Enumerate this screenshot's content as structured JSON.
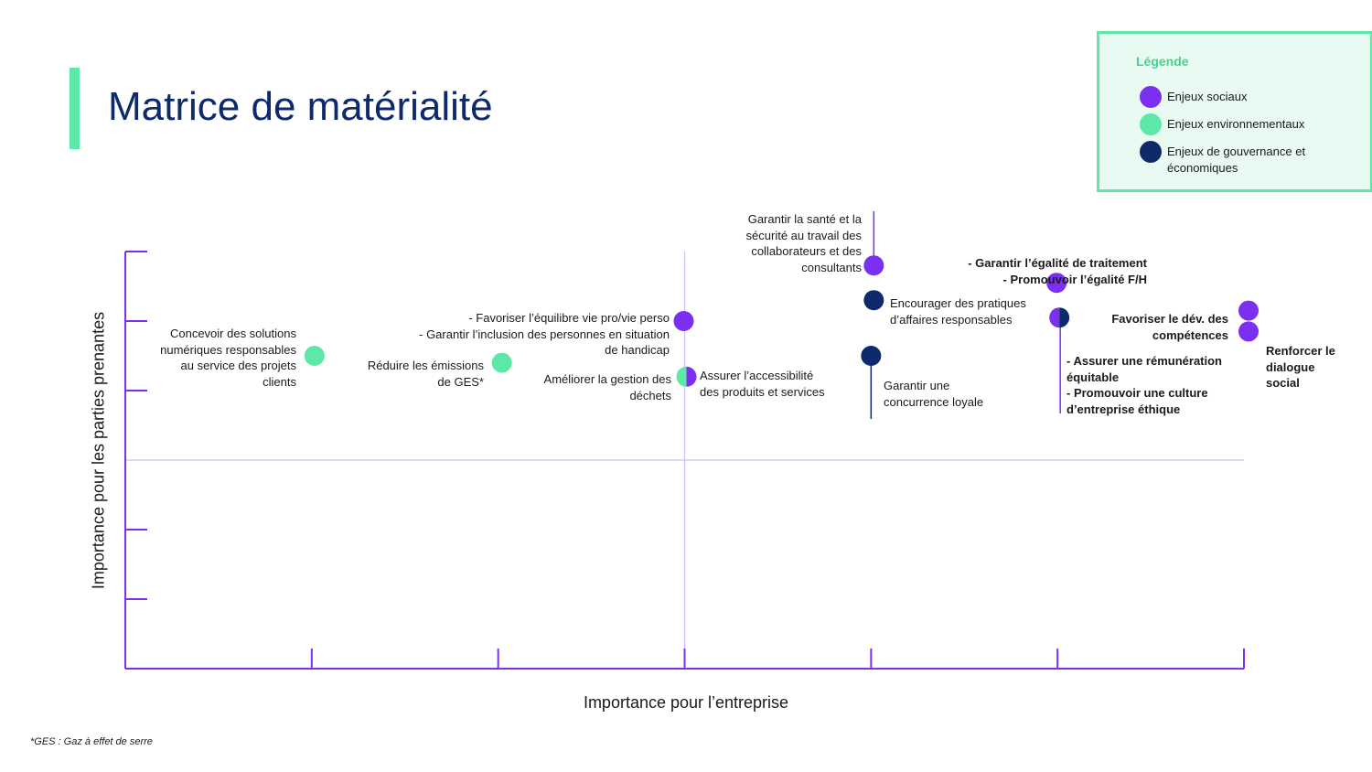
{
  "title": "Matrice de matérialité",
  "legend": {
    "title": "Légende",
    "items": [
      {
        "label": "Enjeux sociaux",
        "color": "#7b2ff0"
      },
      {
        "label": "Enjeux environnementaux",
        "color": "#5ee8a8"
      },
      {
        "label": "Enjeux de gouvernance et\néconomiques",
        "color": "#0f2a6b"
      }
    ]
  },
  "footnote": "*GES : Gaz à effet de serre",
  "colors": {
    "social": "#7b2ff0",
    "env": "#5ee8a8",
    "gov": "#0f2a6b",
    "axis": "#7b2ff0",
    "grid": "#cbbdf5"
  },
  "chart_data": {
    "type": "scatter",
    "xlabel": "Importance pour l’entreprise",
    "ylabel": "Importance pour les parties prenantes",
    "xlim": [
      0,
      6
    ],
    "ylim": [
      0,
      6
    ],
    "points": [
      {
        "x": 1,
        "y": 4.5,
        "category": "env",
        "label": "Concevoir des solutions\nnumériques responsables\nau service des projets\nclients"
      },
      {
        "x": 2,
        "y": 4.4,
        "category": "env",
        "label": "Réduire les émissions\nde GES*"
      },
      {
        "x": 3,
        "y": 5.0,
        "category": "social",
        "label": "- Favoriser l’équilibre vie pro/vie perso\n- Garantir l’inclusion des personnes en situation\nde handicap"
      },
      {
        "x": 3,
        "y": 4.2,
        "category": "env+social",
        "label": "Améliorer la gestion des\ndéchets",
        "label2": "Assurer l’accessibilité\ndes produits et services"
      },
      {
        "x": 4,
        "y": 5.8,
        "category": "social",
        "label": "Garantir la santé et la\nsécurité au travail des\ncollaborateurs et des\nconsultants"
      },
      {
        "x": 4,
        "y": 5.3,
        "category": "gov",
        "label": "Encourager des pratiques\nd’affaires responsables"
      },
      {
        "x": 4,
        "y": 4.5,
        "category": "gov",
        "label": "Garantir une\nconcurrence loyale"
      },
      {
        "x": 5,
        "y": 5.55,
        "category": "social",
        "label": "- Garantir l’égalité de traitement\n- Promouvoir l’égalité F/H"
      },
      {
        "x": 5,
        "y": 5.05,
        "category": "social+gov",
        "label": "- Assurer une rémunération\néquitable\n- Promouvoir une culture\nd’entreprise éthique"
      },
      {
        "x": 6,
        "y": 5.15,
        "category": "social",
        "label": "Favoriser le dév. des\ncompétences"
      },
      {
        "x": 6,
        "y": 4.85,
        "category": "social",
        "label": "Renforcer le\ndialogue\nsocial"
      }
    ]
  }
}
